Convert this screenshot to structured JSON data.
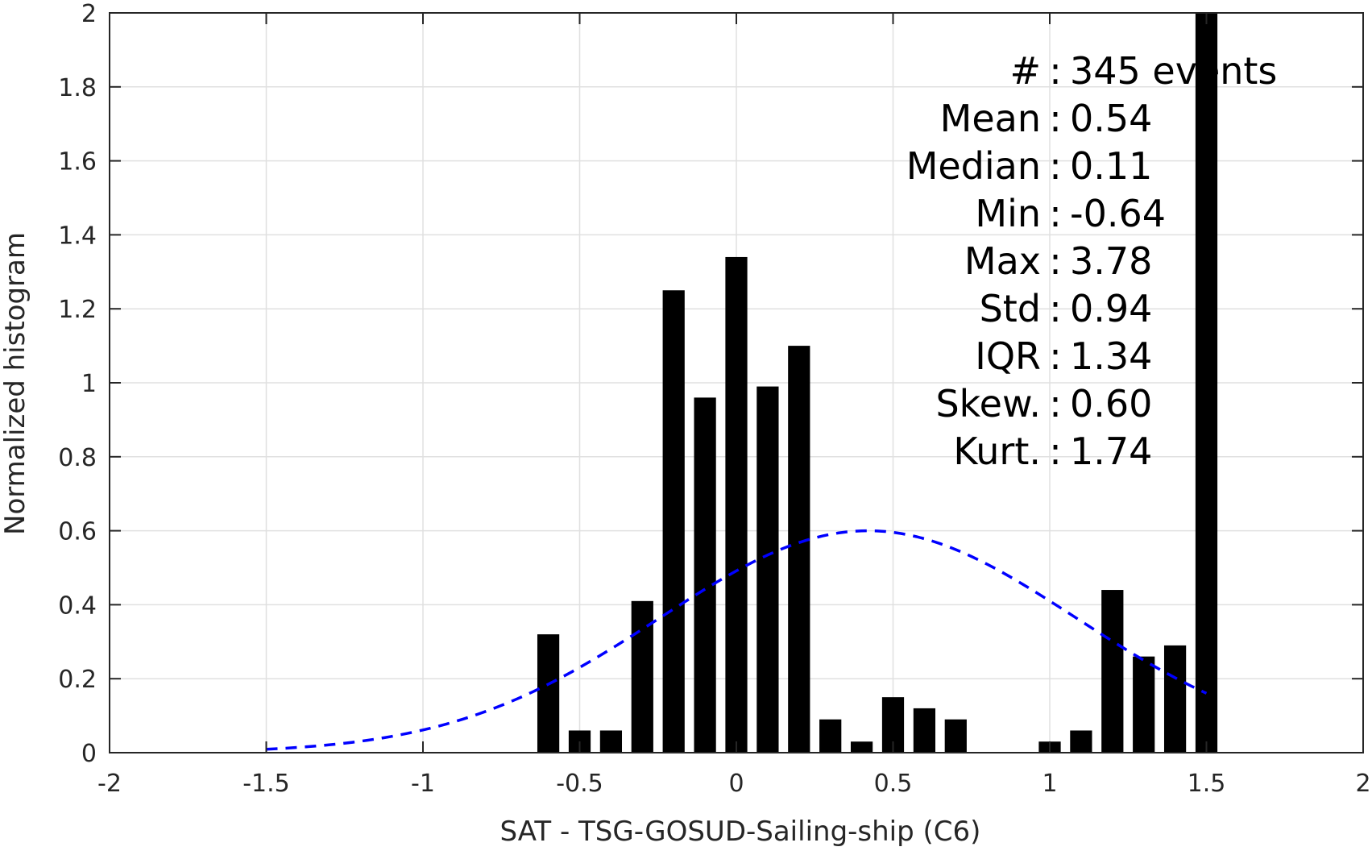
{
  "chart_data": {
    "type": "bar",
    "xlabel": "SAT - TSG-GOSUD-Sailing-ship (C6)",
    "ylabel": "Normalized histogram",
    "xlim": [
      -2,
      2
    ],
    "ylim": [
      0,
      2
    ],
    "grid": true,
    "x_ticks": [
      "-2",
      "-1.5",
      "-1",
      "-0.5",
      "0",
      "0.5",
      "1",
      "1.5",
      "2"
    ],
    "y_ticks": [
      "0",
      "0.2",
      "0.4",
      "0.6",
      "0.8",
      "1",
      "1.2",
      "1.4",
      "1.6",
      "1.8",
      "2"
    ],
    "bar_width": 0.07,
    "bars": [
      {
        "x": -0.6,
        "y": 0.32
      },
      {
        "x": -0.5,
        "y": 0.06
      },
      {
        "x": -0.4,
        "y": 0.06
      },
      {
        "x": -0.3,
        "y": 0.41
      },
      {
        "x": -0.2,
        "y": 1.25
      },
      {
        "x": -0.1,
        "y": 0.96
      },
      {
        "x": 0.0,
        "y": 1.34
      },
      {
        "x": 0.1,
        "y": 0.99
      },
      {
        "x": 0.2,
        "y": 1.1
      },
      {
        "x": 0.3,
        "y": 0.09
      },
      {
        "x": 0.4,
        "y": 0.03
      },
      {
        "x": 0.5,
        "y": 0.15
      },
      {
        "x": 0.6,
        "y": 0.12
      },
      {
        "x": 0.7,
        "y": 0.09
      },
      {
        "x": 1.0,
        "y": 0.03
      },
      {
        "x": 1.1,
        "y": 0.06
      },
      {
        "x": 1.2,
        "y": 0.44
      },
      {
        "x": 1.3,
        "y": 0.26
      },
      {
        "x": 1.4,
        "y": 0.29
      },
      {
        "x": 1.5,
        "y": 2.0
      }
    ],
    "fit_curve": {
      "style": "dashed",
      "color": "#0000ff",
      "x_range": [
        -1.5,
        1.5
      ],
      "mean": 0.42,
      "std": 0.665,
      "peak": 0.6
    },
    "stats": [
      {
        "label": "#  ",
        "value": "345 events"
      },
      {
        "label": "Mean",
        "value": "0.54"
      },
      {
        "label": "Median",
        "value": "0.11"
      },
      {
        "label": "Min",
        "value": "-0.64"
      },
      {
        "label": "Max",
        "value": "3.78"
      },
      {
        "label": "Std",
        "value": "0.94"
      },
      {
        "label": "IQR",
        "value": "1.34"
      },
      {
        "label": "Skew.",
        "value": "0.60"
      },
      {
        "label": "Kurt.",
        "value": "1.74"
      }
    ],
    "colors": {
      "bars": "#000000",
      "grid": "#e0e0e0",
      "axis": "#262626"
    }
  }
}
